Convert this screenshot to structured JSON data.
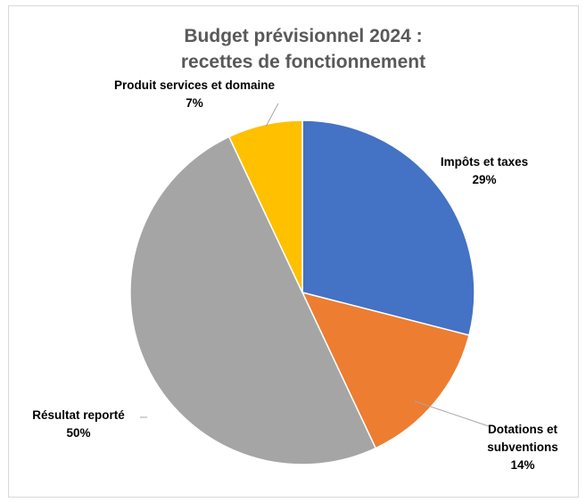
{
  "chart_data": {
    "type": "pie",
    "title_lines": [
      "Budget prévisionnel 2024 :",
      "recettes de fonctionnement"
    ],
    "slices": [
      {
        "label_lines": [
          "Impôts et taxes"
        ],
        "percent_label": "29%",
        "value": 29,
        "color": "#4472C4"
      },
      {
        "label_lines": [
          "Dotations et",
          "subventions"
        ],
        "percent_label": "14%",
        "value": 14,
        "color": "#ED7D31"
      },
      {
        "label_lines": [
          "Résultat reporté"
        ],
        "percent_label": "50%",
        "value": 50,
        "color": "#A5A5A5"
      },
      {
        "label_lines": [
          "Produit services et domaine"
        ],
        "percent_label": "7%",
        "value": 7,
        "color": "#FFC000"
      }
    ],
    "legend": "none"
  }
}
